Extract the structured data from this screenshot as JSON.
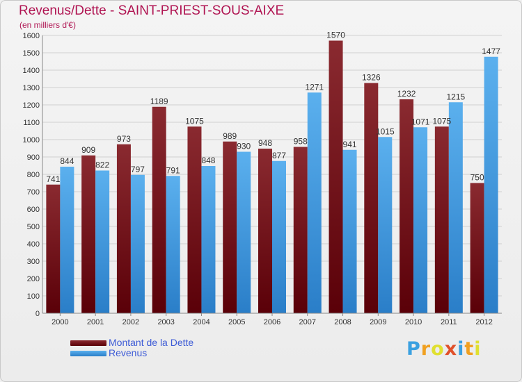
{
  "header": {
    "title": "Revenus/Dette - SAINT-PRIEST-SOUS-AIXE",
    "subtitle": "(en milliers d'€)"
  },
  "logo": {
    "text": "Proxiti"
  },
  "colors": {
    "dette": "#7a1a20",
    "revenus": "#4ea2e3",
    "grid": "#d0d0d0",
    "axis": "#888888",
    "title": "#b01452",
    "legend_text": "#3d5bd6"
  },
  "chart_data": {
    "type": "bar",
    "title": "Revenus/Dette - SAINT-PRIEST-SOUS-AIXE",
    "subtitle": "(en milliers d'€)",
    "categories": [
      "2000",
      "2001",
      "2002",
      "2003",
      "2004",
      "2005",
      "2006",
      "2007",
      "2008",
      "2009",
      "2010",
      "2011",
      "2012"
    ],
    "series": [
      {
        "name": "Montant de la Dette",
        "values": [
          741,
          909,
          973,
          1189,
          1075,
          989,
          948,
          958,
          1570,
          1326,
          1232,
          1075,
          750
        ]
      },
      {
        "name": "Revenus",
        "values": [
          844,
          822,
          797,
          791,
          848,
          930,
          877,
          1271,
          941,
          1015,
          1071,
          1215,
          1477
        ]
      }
    ],
    "ylim": [
      0,
      1600
    ],
    "yticks": [
      0,
      100,
      200,
      300,
      400,
      500,
      600,
      700,
      800,
      900,
      1000,
      1100,
      1200,
      1300,
      1400,
      1500,
      1600
    ],
    "grid": true,
    "legend_position": "bottom-left"
  }
}
